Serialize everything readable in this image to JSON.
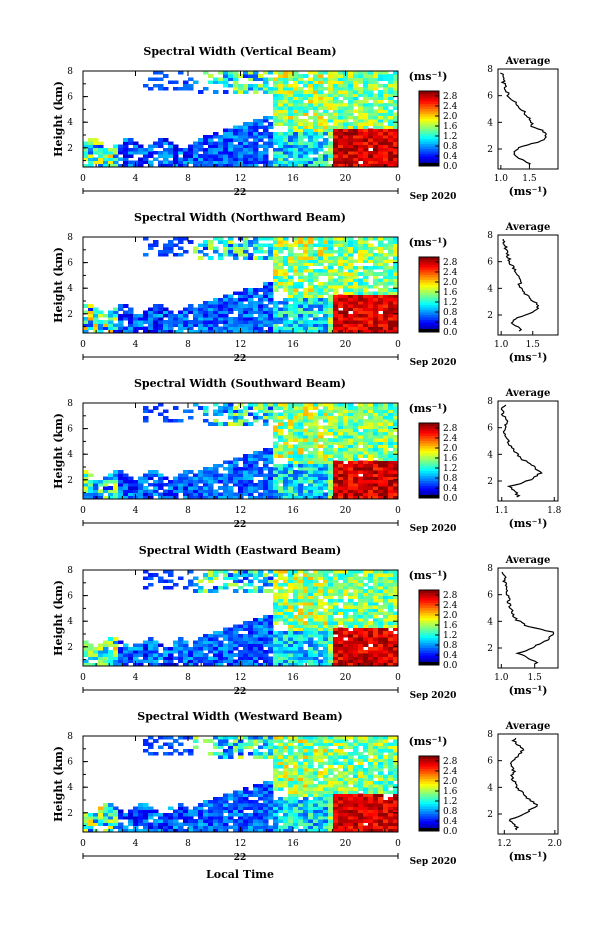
{
  "date_label": "Sep 2020",
  "day_label": "22",
  "xlabel": "Local Time",
  "unit_label": "(ms⁻¹)",
  "avg_title": "Average",
  "avg_xlabel": "(ms⁻¹)",
  "chart_data": [
    {
      "type": "heatmap",
      "title": "Spectral Width (Vertical Beam)",
      "ylabel": "Height (km)",
      "x_ticks": [
        "0",
        "4",
        "8",
        "12",
        "16",
        "20",
        "0"
      ],
      "xlim": [
        0,
        24
      ],
      "y_ticks": [
        "2",
        "4",
        "6",
        "8"
      ],
      "ylim": [
        0.5,
        8
      ],
      "colorbar": {
        "ticks": [
          "0.0",
          "0.4",
          "0.8",
          "1.2",
          "1.6",
          "2.0",
          "2.4",
          "2.8"
        ],
        "range": [
          0,
          3
        ]
      },
      "average": {
        "xlim": [
          0.95,
          2.0
        ],
        "x_ticks": [
          "1.0",
          "1.5"
        ],
        "profile_x": [
          1.62,
          1.45,
          1.2,
          1.32,
          1.75,
          1.82,
          1.55,
          1.5,
          1.4,
          1.3,
          1.15,
          1.1,
          1.05,
          1.02,
          1.0
        ]
      }
    },
    {
      "type": "heatmap",
      "title": "Spectral Width (Northward Beam)",
      "ylabel": "Height (km)",
      "x_ticks": [
        "0",
        "4",
        "8",
        "12",
        "16",
        "20",
        "0"
      ],
      "xlim": [
        0,
        24
      ],
      "y_ticks": [
        "2",
        "4",
        "6",
        "8"
      ],
      "ylim": [
        0.5,
        8
      ],
      "colorbar": {
        "ticks": [
          "0.0",
          "0.4",
          "0.8",
          "1.2",
          "1.6",
          "2.0",
          "2.4",
          "2.8"
        ],
        "range": [
          0,
          3
        ]
      },
      "average": {
        "xlim": [
          0.95,
          1.9
        ],
        "x_ticks": [
          "1.0",
          "1.5"
        ],
        "profile_x": [
          1.35,
          1.28,
          1.15,
          1.45,
          1.6,
          1.48,
          1.35,
          1.3,
          1.28,
          1.22,
          1.15,
          1.1,
          1.08,
          1.05,
          1.02
        ]
      }
    },
    {
      "type": "heatmap",
      "title": "Spectral Width (Southward Beam)",
      "ylabel": "Height (km)",
      "x_ticks": [
        "0",
        "4",
        "8",
        "12",
        "16",
        "20",
        "0"
      ],
      "xlim": [
        0,
        24
      ],
      "y_ticks": [
        "2",
        "4",
        "6",
        "8"
      ],
      "ylim": [
        0.5,
        8
      ],
      "colorbar": {
        "ticks": [
          "0.0",
          "0.4",
          "0.8",
          "1.2",
          "1.6",
          "2.0",
          "2.4",
          "2.8"
        ],
        "range": [
          0,
          3
        ]
      },
      "average": {
        "xlim": [
          1.05,
          1.85
        ],
        "x_ticks": [
          "1.1",
          "1.8"
        ],
        "profile_x": [
          1.35,
          1.3,
          1.2,
          1.5,
          1.62,
          1.5,
          1.35,
          1.28,
          1.2,
          1.15,
          1.12,
          1.18,
          1.12,
          1.1,
          1.2
        ]
      }
    },
    {
      "type": "heatmap",
      "title": "Spectral Width (Eastward Beam)",
      "ylabel": "Height (km)",
      "x_ticks": [
        "0",
        "4",
        "8",
        "12",
        "16",
        "20",
        "0"
      ],
      "xlim": [
        0,
        24
      ],
      "y_ticks": [
        "2",
        "4",
        "6",
        "8"
      ],
      "ylim": [
        0.5,
        8
      ],
      "colorbar": {
        "ticks": [
          "0.0",
          "0.4",
          "0.8",
          "1.2",
          "1.6",
          "2.0",
          "2.4",
          "2.8"
        ],
        "range": [
          0,
          3
        ]
      },
      "average": {
        "xlim": [
          0.95,
          1.85
        ],
        "x_ticks": [
          "1.0",
          "1.5"
        ],
        "profile_x": [
          1.55,
          1.5,
          1.25,
          1.5,
          1.7,
          1.78,
          1.35,
          1.2,
          1.15,
          1.12,
          1.1,
          1.08,
          1.05,
          1.05,
          1.02
        ]
      }
    },
    {
      "type": "heatmap",
      "title": "Spectral Width (Westward Beam)",
      "ylabel": "Height (km)",
      "x_ticks": [
        "0",
        "4",
        "8",
        "12",
        "16",
        "20",
        "0"
      ],
      "xlim": [
        0,
        24
      ],
      "y_ticks": [
        "2",
        "4",
        "6",
        "8"
      ],
      "ylim": [
        0.5,
        8
      ],
      "colorbar": {
        "ticks": [
          "0.0",
          "0.4",
          "0.8",
          "1.2",
          "1.6",
          "2.0",
          "2.4",
          "2.8"
        ],
        "range": [
          0,
          3
        ]
      },
      "average": {
        "xlim": [
          1.1,
          2.05
        ],
        "x_ticks": [
          "1.2",
          "2.0"
        ],
        "profile_x": [
          1.48,
          1.38,
          1.3,
          1.55,
          1.72,
          1.58,
          1.45,
          1.38,
          1.32,
          1.35,
          1.3,
          1.42,
          1.5,
          1.35,
          1.45
        ]
      }
    }
  ]
}
